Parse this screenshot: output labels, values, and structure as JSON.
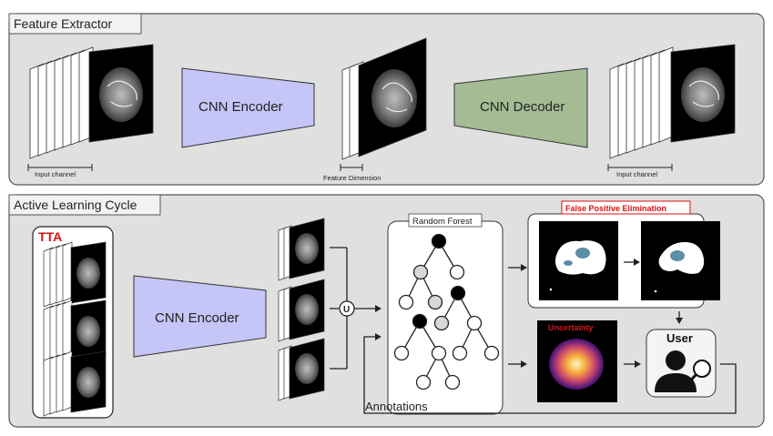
{
  "feature_extractor": {
    "title": "Feature Extractor",
    "encoder_label": "CNN Encoder",
    "decoder_label": "CNN Decoder",
    "input_channel_left": "Input channel",
    "feature_dimension": "Feature Dimension",
    "input_channel_right": "Input channel"
  },
  "active_learning": {
    "title": "Active Learning Cycle",
    "tta_label": "TTA",
    "encoder_label": "CNN Encoder",
    "union_symbol": "U",
    "random_forest_label": "Random Forest",
    "fpe_label": "False Positive Elimination",
    "uncertainty_label": "Uncertainty",
    "user_label": "User",
    "annotations_label": "Annotations"
  },
  "colors": {
    "panel_bg": "#e0e0e0",
    "encoder": "#c5c5f7",
    "decoder": "#a3bc94",
    "highlight_red": "#dd1111"
  }
}
